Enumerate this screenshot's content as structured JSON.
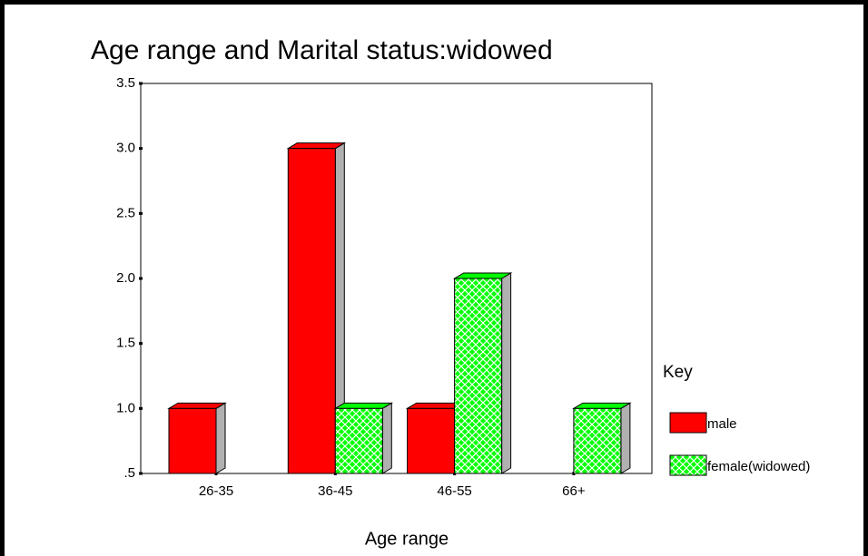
{
  "chart_data": {
    "type": "bar",
    "title": "Age range and Marital status:widowed",
    "x_label": "Age range",
    "categories": [
      "26-35",
      "36-45",
      "46-55",
      "66+"
    ],
    "series": [
      {
        "name": "male",
        "color": "#ff0000",
        "values": [
          1,
          3,
          1,
          null
        ]
      },
      {
        "name": "female(widowed)",
        "color": "#00ff00",
        "pattern": "crosshatch",
        "values": [
          null,
          1,
          2,
          1
        ]
      }
    ],
    "ylim": [
      0.5,
      3.5
    ],
    "yticks": [
      {
        "value": 0.5,
        "label": ".5"
      },
      {
        "value": 1.0,
        "label": "1.0"
      },
      1.5,
      {
        "value": 2.0,
        "label": "2.0"
      },
      2.5,
      {
        "value": 3.0,
        "label": "3.0"
      },
      3.5
    ],
    "legend_title": "Key",
    "legend": "right"
  }
}
